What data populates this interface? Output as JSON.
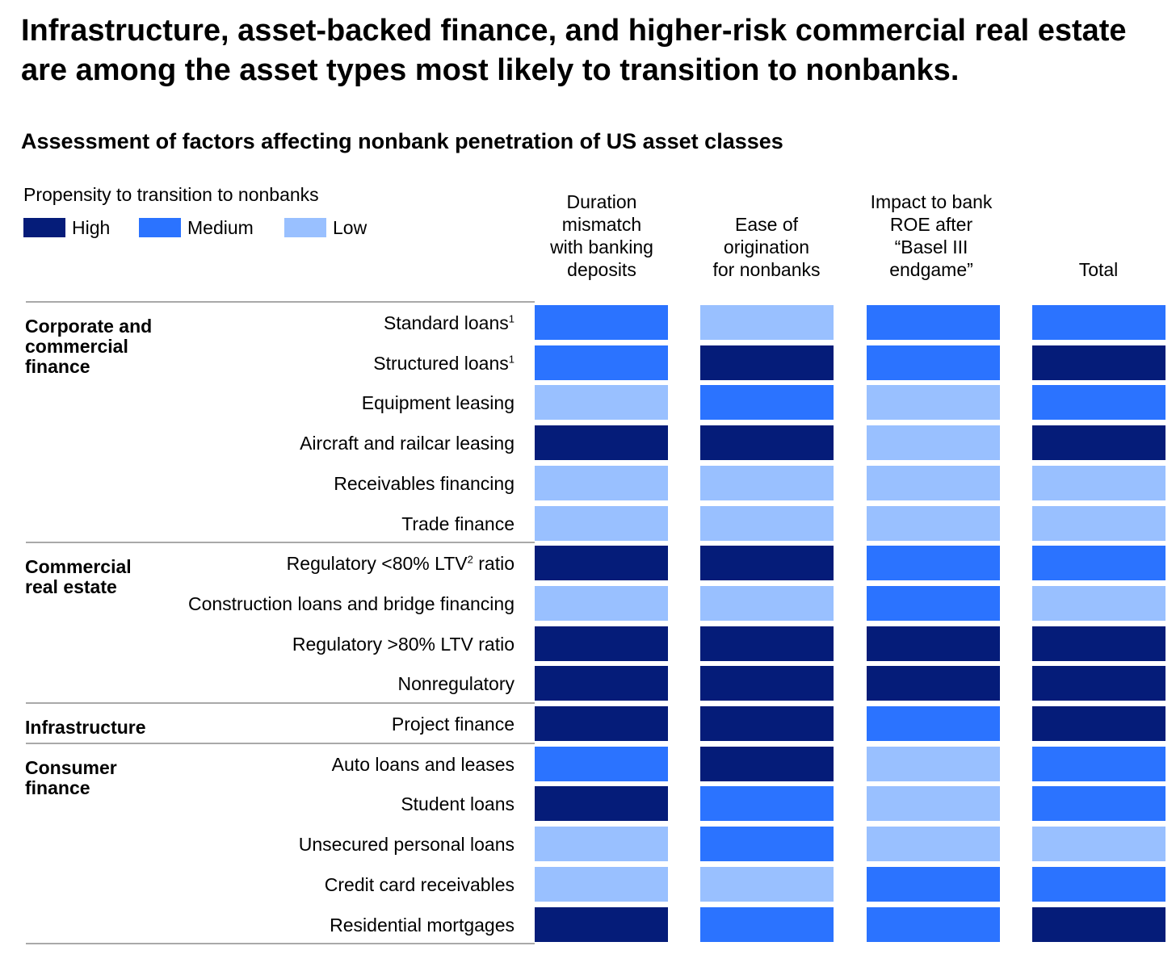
{
  "title": "Infrastructure, asset-backed finance, and higher-risk commercial real estate are among the asset types most likely to transition to nonbanks.",
  "subtitle": "Assessment of factors affecting nonbank penetration of US asset classes",
  "legend": {
    "title": "Propensity to transition to nonbanks",
    "items": [
      {
        "label": "High",
        "color": "#051c79"
      },
      {
        "label": "Medium",
        "color": "#2b73ff"
      },
      {
        "label": "Low",
        "color": "#99c0ff"
      }
    ]
  },
  "colors": {
    "High": "#051c79",
    "Medium": "#2b73ff",
    "Low": "#99c0ff"
  },
  "chart_data": {
    "type": "heatmap",
    "title": "Assessment of factors affecting nonbank penetration of US asset classes",
    "columns": [
      "Duration mismatch with banking deposits",
      "Ease of origination for nonbanks",
      "Impact to bank ROE after “Basel III endgame”",
      "Total"
    ],
    "column_header_lines": [
      [
        "Duration",
        "mismatch",
        "with banking",
        "deposits"
      ],
      [
        "Ease of",
        "origination",
        "for nonbanks"
      ],
      [
        "Impact to bank",
        "ROE after",
        "“Basel III",
        "endgame”"
      ],
      [
        "Total"
      ]
    ],
    "groups": [
      {
        "name": "Corporate and commercial finance",
        "name_lines": [
          "Corporate and",
          "commercial",
          "finance"
        ],
        "rows": [
          {
            "label": "Standard loans",
            "sup": "1",
            "values": [
              "Medium",
              "Low",
              "Medium",
              "Medium"
            ]
          },
          {
            "label": "Structured loans",
            "sup": "1",
            "values": [
              "Medium",
              "High",
              "Medium",
              "High"
            ]
          },
          {
            "label": "Equipment leasing",
            "values": [
              "Low",
              "Medium",
              "Low",
              "Medium"
            ]
          },
          {
            "label": "Aircraft and railcar leasing",
            "values": [
              "High",
              "High",
              "Low",
              "High"
            ]
          },
          {
            "label": "Receivables financing",
            "values": [
              "Low",
              "Low",
              "Low",
              "Low"
            ]
          },
          {
            "label": "Trade finance",
            "values": [
              "Low",
              "Low",
              "Low",
              "Low"
            ]
          }
        ]
      },
      {
        "name": "Commercial real estate",
        "name_lines": [
          "Commercial",
          "real estate"
        ],
        "rows": [
          {
            "label": "Regulatory <80% LTV",
            "sup": "2",
            "label_after": " ratio",
            "values": [
              "High",
              "High",
              "Medium",
              "Medium"
            ]
          },
          {
            "label": "Construction loans and bridge financing",
            "values": [
              "Low",
              "Low",
              "Medium",
              "Low"
            ]
          },
          {
            "label": "Regulatory >80% LTV ratio",
            "values": [
              "High",
              "High",
              "High",
              "High"
            ]
          },
          {
            "label": "Nonregulatory",
            "values": [
              "High",
              "High",
              "High",
              "High"
            ]
          }
        ]
      },
      {
        "name": "Infrastructure",
        "name_lines": [
          "Infrastructure"
        ],
        "rows": [
          {
            "label": "Project finance",
            "values": [
              "High",
              "High",
              "Medium",
              "High"
            ]
          }
        ]
      },
      {
        "name": "Consumer finance",
        "name_lines": [
          "Consumer",
          "finance"
        ],
        "rows": [
          {
            "label": "Auto loans and leases",
            "values": [
              "Medium",
              "High",
              "Low",
              "Medium"
            ]
          },
          {
            "label": "Student loans",
            "values": [
              "High",
              "Medium",
              "Low",
              "Medium"
            ]
          },
          {
            "label": "Unsecured personal loans",
            "values": [
              "Low",
              "Medium",
              "Low",
              "Low"
            ]
          },
          {
            "label": "Credit card receivables",
            "values": [
              "Low",
              "Low",
              "Medium",
              "Medium"
            ]
          },
          {
            "label": "Residential mortgages",
            "values": [
              "High",
              "Medium",
              "Medium",
              "High"
            ]
          }
        ]
      }
    ]
  }
}
